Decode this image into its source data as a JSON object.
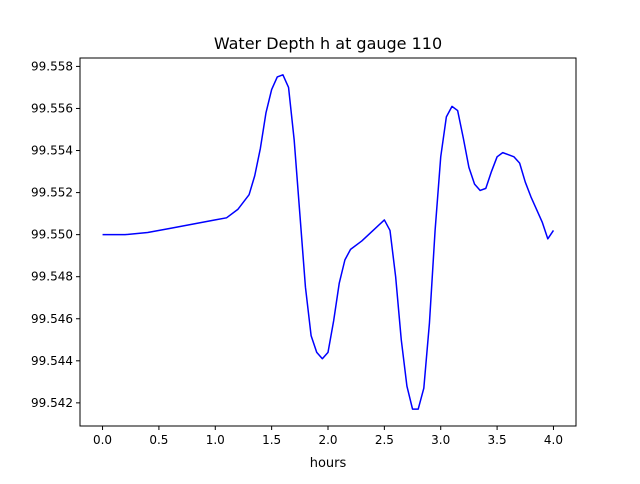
{
  "chart_data": {
    "type": "line",
    "title": "Water Depth h at gauge 110",
    "xlabel": "hours",
    "ylabel": "",
    "xlim": [
      -0.2,
      4.2
    ],
    "ylim": [
      99.5409,
      99.5584
    ],
    "x_ticks": [
      0.0,
      0.5,
      1.0,
      1.5,
      2.0,
      2.5,
      3.0,
      3.5,
      4.0
    ],
    "x_tick_labels": [
      "0.0",
      "0.5",
      "1.0",
      "1.5",
      "2.0",
      "2.5",
      "3.0",
      "3.5",
      "4.0"
    ],
    "y_ticks": [
      99.542,
      99.544,
      99.546,
      99.548,
      99.55,
      99.552,
      99.554,
      99.556,
      99.558
    ],
    "y_tick_labels": [
      "99.542",
      "99.544",
      "99.546",
      "99.548",
      "99.550",
      "99.552",
      "99.554",
      "99.556",
      "99.558"
    ],
    "grid": false,
    "series": [
      {
        "color": "#0000ff",
        "x": [
          0.0,
          0.2,
          0.4,
          0.6,
          0.8,
          0.9,
          1.0,
          1.1,
          1.2,
          1.3,
          1.35,
          1.4,
          1.45,
          1.5,
          1.55,
          1.6,
          1.65,
          1.7,
          1.75,
          1.8,
          1.85,
          1.9,
          1.95,
          2.0,
          2.05,
          2.1,
          2.15,
          2.2,
          2.3,
          2.4,
          2.5,
          2.55,
          2.6,
          2.65,
          2.7,
          2.75,
          2.8,
          2.85,
          2.9,
          2.95,
          3.0,
          3.05,
          3.1,
          3.15,
          3.2,
          3.25,
          3.3,
          3.35,
          3.4,
          3.45,
          3.5,
          3.55,
          3.6,
          3.65,
          3.7,
          3.75,
          3.8,
          3.85,
          3.9,
          3.95,
          4.0
        ],
        "y": [
          99.55,
          99.55,
          99.5501,
          99.5503,
          99.5505,
          99.5506,
          99.5507,
          99.5508,
          99.5512,
          99.5519,
          99.5528,
          99.5541,
          99.5558,
          99.5569,
          99.5575,
          99.5576,
          99.557,
          99.5545,
          99.551,
          99.5475,
          99.5452,
          99.5444,
          99.5441,
          99.5444,
          99.5459,
          99.5477,
          99.5488,
          99.5493,
          99.5497,
          99.5502,
          99.5507,
          99.5502,
          99.548,
          99.545,
          99.5428,
          99.5417,
          99.5417,
          99.5427,
          99.5458,
          99.5502,
          99.5537,
          99.5556,
          99.5561,
          99.5559,
          99.5546,
          99.5532,
          99.5524,
          99.5521,
          99.5522,
          99.553,
          99.5537,
          99.5539,
          99.5538,
          99.5537,
          99.5534,
          99.5525,
          99.5518,
          99.5512,
          99.5506,
          99.5498,
          99.5502
        ]
      }
    ]
  }
}
